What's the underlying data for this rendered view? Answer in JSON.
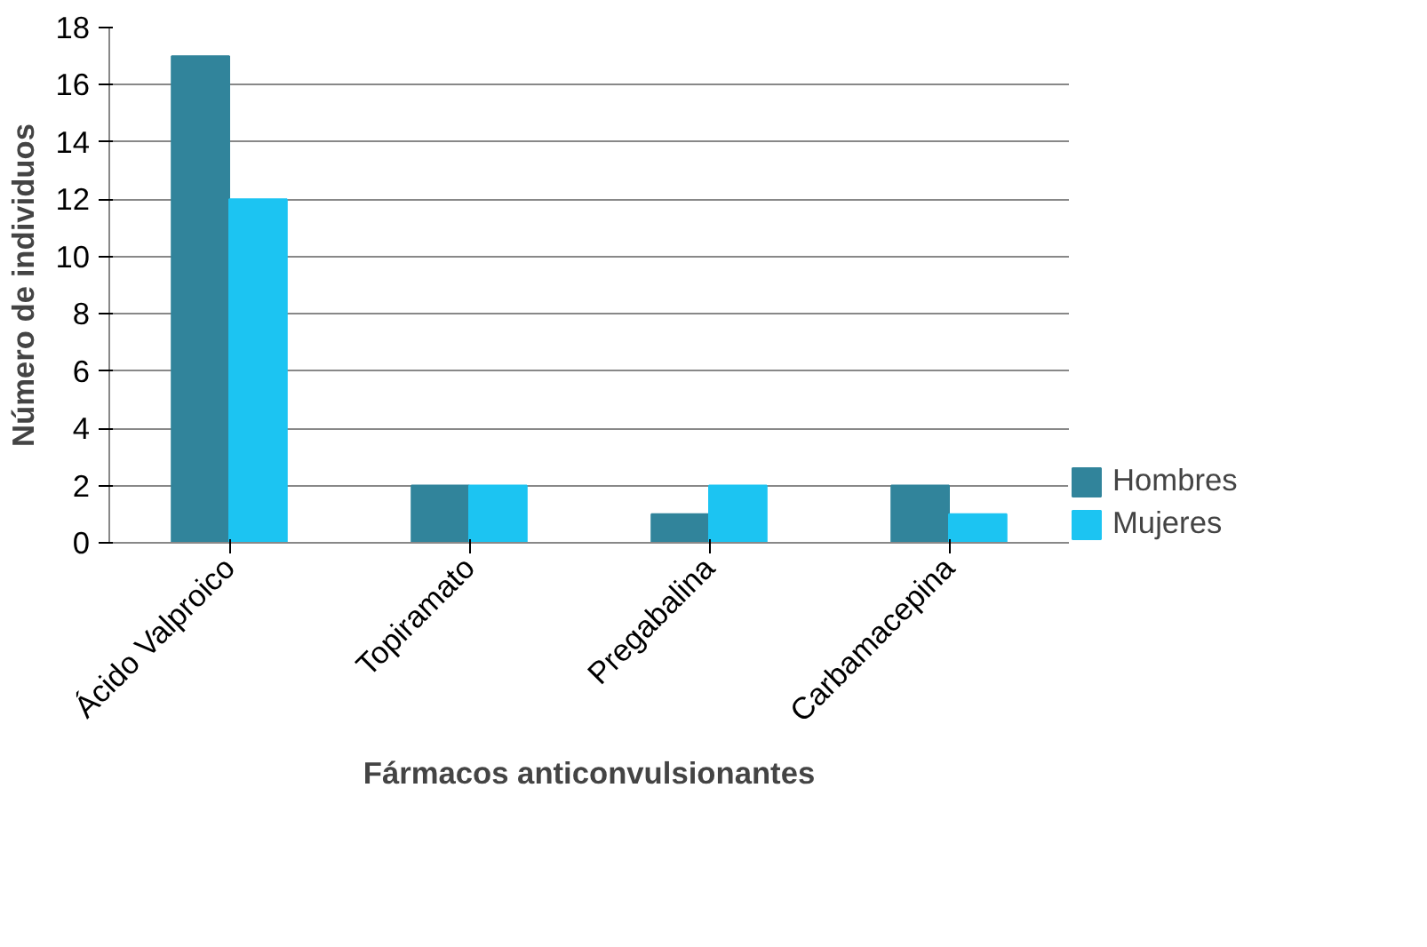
{
  "chart_data": {
    "type": "bar",
    "xlabel": "Fármacos anticonvulsionantes",
    "ylabel": "Número de individuos",
    "categories": [
      "Ácido Valproico",
      "Topiramato",
      "Pregabalina",
      "Carbamacepina"
    ],
    "series": [
      {
        "name": "Hombres",
        "color": "#31849b",
        "values": [
          17,
          2,
          1,
          2
        ]
      },
      {
        "name": "Mujeres",
        "color": "#1cc4f2",
        "values": [
          12,
          2,
          2,
          1
        ]
      }
    ],
    "ylim": [
      0,
      18
    ],
    "yticks": [
      0,
      2,
      4,
      6,
      8,
      10,
      12,
      14,
      16,
      18
    ],
    "grid": "y",
    "legend": "right"
  }
}
